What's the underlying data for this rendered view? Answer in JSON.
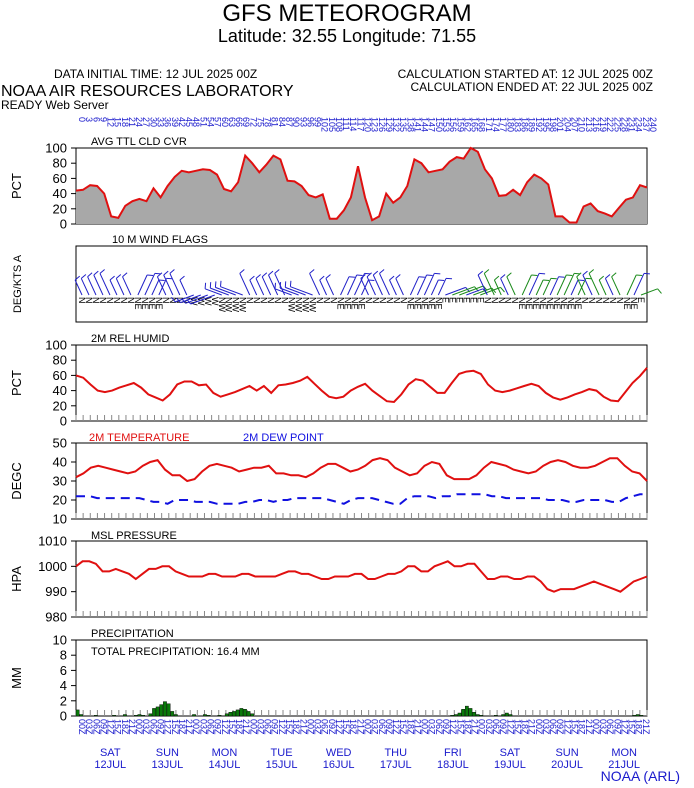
{
  "header": {
    "title": "GFS METEOROGRAM",
    "subtitle": "Latitude: 32.55 Longitude:  71.55",
    "init_time": "DATA INITIAL TIME: 12 JUL 2025 00Z",
    "calc_started": "CALCULATION STARTED AT: 12 JUL 2025 00Z",
    "calc_ended": "CALCULATION ENDED AT: 22 JUL 2025 00Z",
    "lab": "NOAA AIR RESOURCES LABORATORY",
    "server": "READY Web Server"
  },
  "footer": "NOAA (ARL)",
  "colors": {
    "cloud_fill": "#a8a8a8",
    "cloud_line": "#e01010",
    "temperature": "#e01010",
    "dewpoint": "#1010e0",
    "pressure": "#e01010",
    "humidity": "#e01010",
    "precip": "#0a7a0a",
    "wind_blue": "#2020c8",
    "wind_green": "#1a8a1a",
    "axis_text_blue": "#1a1acc"
  },
  "day_labels": [
    {
      "day": "SAT",
      "date": "12JUL"
    },
    {
      "day": "SUN",
      "date": "13JUL"
    },
    {
      "day": "MON",
      "date": "14JUL"
    },
    {
      "day": "TUE",
      "date": "15JUL"
    },
    {
      "day": "WED",
      "date": "16JUL"
    },
    {
      "day": "THU",
      "date": "17JUL"
    },
    {
      "day": "FRI",
      "date": "18JUL"
    },
    {
      "day": "SAT",
      "date": "19JUL"
    },
    {
      "day": "SUN",
      "date": "20JUL"
    },
    {
      "day": "MON",
      "date": "21JUL"
    }
  ],
  "chart_data": [
    {
      "type": "area",
      "panel": "cloud",
      "title": "AVG TTL CLD CVR",
      "ylabel": "PCT",
      "ylim": [
        0,
        100
      ],
      "yticks": [
        0,
        20,
        40,
        60,
        80,
        100
      ],
      "x_hours_step": 3,
      "x_range_hours": [
        0,
        240
      ],
      "values": [
        44,
        45,
        51,
        50,
        40,
        10,
        8,
        24,
        30,
        33,
        30,
        47,
        35,
        50,
        62,
        70,
        68,
        70,
        72,
        71,
        65,
        46,
        43,
        55,
        90,
        80,
        68,
        78,
        90,
        85,
        57,
        56,
        50,
        38,
        35,
        39,
        7,
        7,
        18,
        35,
        76,
        35,
        5,
        10,
        40,
        28,
        35,
        50,
        85,
        80,
        68,
        70,
        72,
        82,
        88,
        86,
        101,
        95,
        72,
        60,
        37,
        38,
        45,
        38,
        55,
        65,
        60,
        52,
        10,
        10,
        2,
        2,
        23,
        27,
        17,
        14,
        10,
        21,
        32,
        35,
        51,
        48
      ]
    },
    {
      "type": "wind_barbs",
      "panel": "wind",
      "title": "10 M  WIND FLAGS",
      "ylabel": "DEG/KTS  A",
      "direction_labels": [
        "N",
        "N",
        "N",
        "N",
        "N",
        "N",
        "N",
        "N",
        "NE",
        "NE",
        "NE",
        "NE",
        "N",
        "N",
        "N",
        "N",
        "W",
        "W",
        "W",
        "W",
        "NW",
        "NW",
        "NW",
        "NW",
        "N",
        "N",
        "N",
        "N",
        "N",
        "N",
        "NW",
        "NW",
        "NW",
        "NW",
        "N",
        "N",
        "N",
        "NE",
        "NE",
        "NE",
        "NE",
        "N",
        "N",
        "N",
        "N",
        "N",
        "N",
        "NE",
        "NE",
        "NE",
        "NE",
        "NE",
        "E",
        "E",
        "E",
        "E",
        "E",
        "E",
        "N",
        "N",
        "N",
        "N",
        "N",
        "NE",
        "NE",
        "NE",
        "NE",
        "NE",
        "NE",
        "NE",
        "NE",
        "NE",
        "N",
        "N",
        "N",
        "N",
        "N",
        "N",
        "NE",
        "NE",
        "E"
      ],
      "green_from_index": 53
    },
    {
      "type": "line",
      "panel": "humidity",
      "title": "2M REL HUMID",
      "ylabel": "PCT",
      "ylim": [
        0,
        100
      ],
      "yticks": [
        0,
        20,
        40,
        60,
        80,
        100
      ],
      "values": [
        60,
        57,
        48,
        40,
        38,
        40,
        44,
        47,
        50,
        44,
        35,
        31,
        27,
        35,
        48,
        52,
        52,
        47,
        48,
        37,
        32,
        35,
        38,
        42,
        46,
        40,
        46,
        37,
        47,
        48,
        50,
        53,
        58,
        49,
        40,
        32,
        30,
        32,
        40,
        45,
        49,
        40,
        33,
        26,
        25,
        35,
        48,
        55,
        53,
        45,
        37,
        37,
        50,
        62,
        65,
        66,
        62,
        48,
        40,
        38,
        40,
        43,
        46,
        49,
        46,
        37,
        31,
        28,
        31,
        35,
        38,
        42,
        40,
        32,
        27,
        26,
        38,
        50,
        59,
        70
      ]
    },
    {
      "type": "line",
      "panel": "temperature",
      "series": [
        {
          "name": "2M TEMPERATURE",
          "color_key": "temperature",
          "dash": false,
          "values": [
            32,
            34,
            37,
            38,
            37,
            36,
            35,
            34,
            35,
            38,
            40,
            41,
            36,
            33,
            33,
            30,
            31,
            35,
            38,
            39,
            38,
            37,
            35,
            36,
            37,
            37,
            38,
            34,
            34,
            33,
            33,
            32,
            34,
            37,
            39,
            39,
            37,
            35,
            36,
            38,
            41,
            42,
            41,
            37,
            35,
            33,
            34,
            38,
            40,
            39,
            33,
            31,
            31,
            31,
            33,
            37,
            40,
            39,
            38,
            36,
            35,
            34,
            35,
            38,
            40,
            41,
            40,
            38,
            37,
            37,
            38,
            40,
            42,
            42,
            38,
            35,
            34,
            30
          ]
        },
        {
          "name": "2M  DEW POINT",
          "color_key": "dewpoint",
          "dash": true,
          "values": [
            22,
            22,
            22,
            21,
            21,
            21,
            21,
            21,
            21,
            21,
            20,
            19,
            19,
            18,
            20,
            20,
            20,
            19,
            19,
            19,
            18,
            18,
            18,
            18,
            19,
            19,
            20,
            20,
            19,
            20,
            20,
            21,
            21,
            21,
            21,
            21,
            20,
            19,
            18,
            20,
            21,
            21,
            21,
            20,
            19,
            18,
            18,
            21,
            22,
            22,
            22,
            21,
            22,
            22,
            23,
            23,
            23,
            23,
            23,
            22,
            22,
            21,
            21,
            21,
            21,
            21,
            21,
            20,
            20,
            20,
            19,
            19,
            20,
            20,
            20,
            20,
            19,
            19,
            21,
            22,
            23,
            23
          ]
        }
      ],
      "ylabel": "DEGC",
      "ylim": [
        10,
        50
      ],
      "yticks": [
        10,
        20,
        30,
        40,
        50
      ]
    },
    {
      "type": "line",
      "panel": "pressure",
      "title": "MSL PRESSURE",
      "ylabel": "HPA",
      "ylim": [
        980,
        1010
      ],
      "yticks": [
        980,
        990,
        1000,
        1010
      ],
      "values": [
        1000,
        1002,
        1002,
        1001,
        998,
        998,
        999,
        998,
        997,
        995,
        997,
        999,
        999,
        1000,
        1000,
        998,
        997,
        996,
        996,
        996,
        997,
        997,
        996,
        996,
        996,
        997,
        997,
        996,
        996,
        996,
        996,
        997,
        998,
        998,
        997,
        997,
        996,
        995,
        995,
        996,
        996,
        996,
        997,
        997,
        995,
        995,
        996,
        997,
        997,
        998,
        1000,
        1000,
        998,
        998,
        1000,
        1001,
        1002,
        1000,
        1000,
        1001,
        1001,
        998,
        995,
        995,
        996,
        996,
        995,
        995,
        996,
        996,
        994,
        991,
        990,
        991,
        991,
        991,
        992,
        993,
        994,
        993,
        992,
        991,
        990,
        992,
        994,
        995,
        996
      ]
    },
    {
      "type": "bar",
      "panel": "precip",
      "title": "PRECIPITATION",
      "annotation": "TOTAL PRECIPITATION:  16.4 MM",
      "ylabel": "MM",
      "ylim": [
        0,
        10
      ],
      "yticks": [
        0,
        2,
        4,
        6,
        8,
        10
      ],
      "values": [
        0.8,
        0.2,
        0,
        0,
        0,
        0.1,
        0,
        0,
        0,
        0,
        0.1,
        0,
        0,
        0.2,
        0,
        0,
        0.1,
        0.2,
        0.1,
        0,
        0.3,
        1.0,
        1.2,
        1.5,
        1.9,
        1.6,
        0.6,
        0.2,
        0,
        0,
        0,
        0,
        0.2,
        0,
        0,
        0.2,
        0.1,
        0,
        0,
        0.1,
        0,
        0.3,
        0.5,
        0.6,
        0.8,
        1.0,
        0.9,
        0.6,
        0.3,
        0,
        0,
        0,
        0,
        0,
        0,
        0,
        0,
        0,
        0,
        0,
        0,
        0,
        0,
        0,
        0,
        0,
        0,
        0,
        0,
        0,
        0,
        0,
        0,
        0,
        0,
        0,
        0,
        0,
        0,
        0,
        0,
        0,
        0,
        0,
        0,
        0,
        0,
        0,
        0,
        0,
        0,
        0,
        0,
        0,
        0,
        0,
        0,
        0,
        0,
        0,
        0,
        0,
        0,
        0.1,
        0.2,
        0.4,
        0.9,
        1.3,
        1.0,
        0.5,
        0.2,
        0.1,
        0,
        0,
        0,
        0.1,
        0,
        0.2,
        0.4,
        0.2,
        0,
        0,
        0,
        0,
        0,
        0,
        0,
        0,
        0,
        0,
        0,
        0,
        0,
        0,
        0,
        0,
        0,
        0,
        0,
        0,
        0,
        0,
        0,
        0,
        0,
        0,
        0,
        0,
        0,
        0,
        0,
        0,
        0,
        0.1,
        0.2,
        0.1,
        0
      ]
    }
  ]
}
